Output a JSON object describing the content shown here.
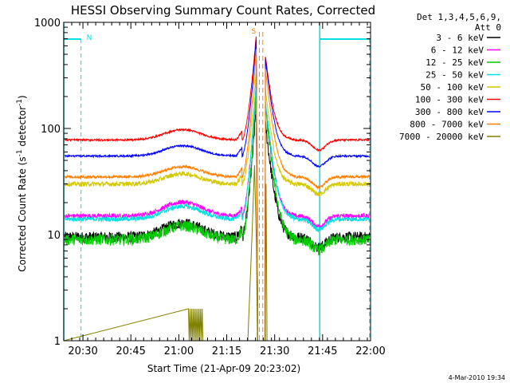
{
  "chart_data": {
    "type": "line",
    "title": "HESSI Observing Summary Count Rates, Corrected",
    "xlabel": "Start Time (21-Apr-09 20:23:02)",
    "ylabel": "Corrected Count Rate (s",
    "ylabel_sup": "-1",
    "ylabel_tail": " detector",
    "ylabel_tail_sup": "-1",
    "ylabel_close": ")",
    "yscale": "log",
    "ylim": [
      1,
      1000
    ],
    "xlim_minutes": [
      20.4,
      22.0
    ],
    "x_ticks": [
      {
        "label": "20:30",
        "t": 20.5
      },
      {
        "label": "20:45",
        "t": 20.75
      },
      {
        "label": "21:00",
        "t": 21.0
      },
      {
        "label": "21:15",
        "t": 21.25
      },
      {
        "label": "21:30",
        "t": 21.5
      },
      {
        "label": "21:45",
        "t": 21.75
      },
      {
        "label": "22:00",
        "t": 22.0
      }
    ],
    "y_ticks": [
      {
        "label": "1",
        "v": 1
      },
      {
        "label": "10",
        "v": 10
      },
      {
        "label": "100",
        "v": 100
      },
      {
        "label": "1000",
        "v": 1000
      }
    ],
    "legend_header": [
      "Det 1,3,4,5,6,9,",
      "Att 0"
    ],
    "series": [
      {
        "name": "3 - 6 keV",
        "color": "#000000",
        "base": 9.5,
        "peak": 180,
        "hump": 1.35,
        "noise": 0.12
      },
      {
        "name": "6 - 12 keV",
        "color": "#ff00ff",
        "base": 15.0,
        "peak": 280,
        "hump": 1.35,
        "noise": 0.05
      },
      {
        "name": "12 - 25 keV",
        "color": "#00cc00",
        "base": 9.0,
        "peak": 250,
        "hump": 1.35,
        "noise": 0.12
      },
      {
        "name": "25 - 50 keV",
        "color": "#00e0e0",
        "base": 14.0,
        "peak": 300,
        "hump": 1.32,
        "noise": 0.05
      },
      {
        "name": "50 - 100 keV",
        "color": "#d4c800",
        "base": 30.0,
        "peak": 380,
        "hump": 1.25,
        "noise": 0.05
      },
      {
        "name": "100 - 300 keV",
        "color": "#ff0000",
        "base": 78.0,
        "peak": 800,
        "hump": 1.25,
        "noise": 0.02
      },
      {
        "name": "300 - 800 keV",
        "color": "#0000ff",
        "base": 55.0,
        "peak": 750,
        "hump": 1.25,
        "noise": 0.02
      },
      {
        "name": "800 - 7000 keV",
        "color": "#ff8000",
        "base": 35.0,
        "peak": 600,
        "hump": 1.25,
        "noise": 0.03
      },
      {
        "name": "7000 - 20000 keV",
        "color": "#808000",
        "base": 1.0,
        "peak": 45,
        "hump": 1.0,
        "noise": 0.0
      }
    ],
    "flags": [
      {
        "label": "N",
        "color": "#00e0e0"
      },
      {
        "label": "S",
        "color": "#ff8000"
      }
    ],
    "footer_date": "4-Mar-2010 19:34"
  }
}
